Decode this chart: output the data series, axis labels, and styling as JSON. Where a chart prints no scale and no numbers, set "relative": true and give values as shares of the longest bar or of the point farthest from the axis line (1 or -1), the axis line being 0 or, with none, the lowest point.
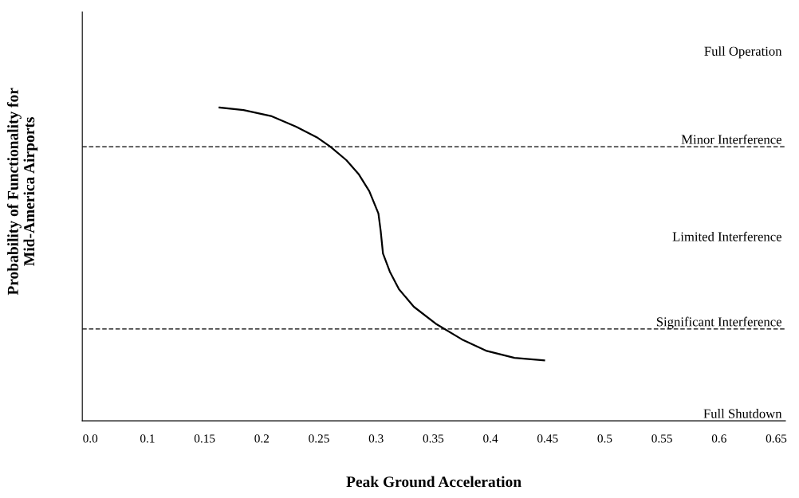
{
  "chart_data": {
    "type": "line",
    "relative": true,
    "xlabel": "Peak Ground Acceleration",
    "ylabel": "Probability of Functionality for\nMid-America Airports",
    "x": [
      0.163,
      0.184,
      0.208,
      0.23,
      0.249,
      0.26,
      0.274,
      0.285,
      0.294,
      0.302,
      0.304,
      0.306,
      0.312,
      0.32,
      0.333,
      0.353,
      0.375,
      0.396,
      0.421,
      0.447
    ],
    "series": [
      {
        "color": "#000000",
        "values": [
          1.0,
          0.992,
          0.973,
          0.939,
          0.903,
          0.875,
          0.832,
          0.786,
          0.733,
          0.662,
          0.606,
          0.534,
          0.476,
          0.42,
          0.364,
          0.308,
          0.26,
          0.224,
          0.201,
          0.193
        ]
      }
    ],
    "xlim": [
      0.043,
      0.658
    ],
    "xticks": [
      {
        "value": 0.05,
        "label": "0.0"
      },
      0.1,
      0.15,
      {
        "value": 0.2,
        "label": "0.2"
      },
      0.25,
      {
        "value": 0.3,
        "label": "0.3"
      },
      0.35,
      {
        "value": 0.4,
        "label": "0.4"
      },
      0.45,
      {
        "value": 0.5,
        "label": "0.5"
      },
      0.55,
      {
        "value": 0.6,
        "label": "0.6"
      },
      0.65
    ],
    "tick_labels": "x",
    "grid": false,
    "legend": false,
    "marker": "none",
    "line_style": "solid",
    "ref_lines": [
      {
        "axis": "y",
        "value": 0.875,
        "label": "Minor Interference",
        "line_style": "dashed",
        "color": "#000000"
      },
      {
        "axis": "y",
        "value": 0.293,
        "label": "Significant Interference",
        "line_style": "dashed",
        "color": "#000000"
      }
    ],
    "annotations": [
      "Full Operation",
      "Limited Interference",
      "Full Shutdown"
    ]
  }
}
